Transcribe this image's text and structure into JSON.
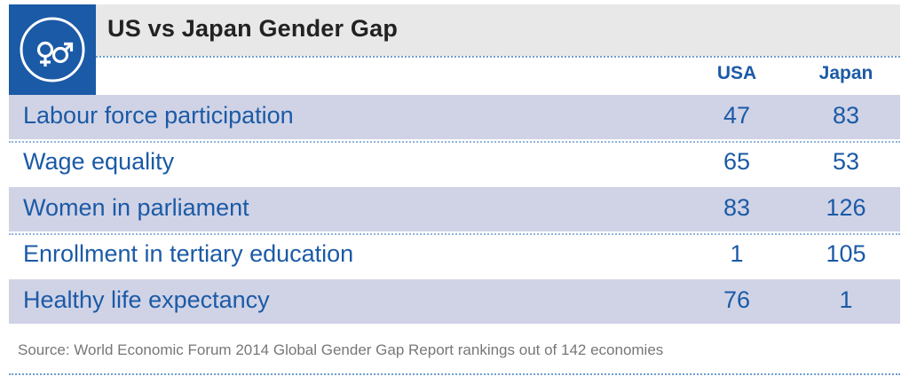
{
  "chart_data": {
    "type": "table",
    "title": "US vs Japan Gender Gap",
    "columns": [
      "USA",
      "Japan"
    ],
    "rows": [
      {
        "label": "Labour force participation",
        "values": [
          "47",
          "83"
        ]
      },
      {
        "label": "Wage equality",
        "values": [
          "65",
          "53"
        ]
      },
      {
        "label": "Women in parliament",
        "values": [
          "83",
          "126"
        ]
      },
      {
        "label": "Enrollment in tertiary education",
        "values": [
          "1",
          "105"
        ]
      },
      {
        "label": "Healthy life expectancy",
        "values": [
          "76",
          "1"
        ]
      }
    ],
    "source": "Source: World Economic Forum 2014 Global Gender Gap Report rankings out of 142 economies"
  },
  "icon": "gender-symbols-icon",
  "colors": {
    "accent": "#1b5aa6",
    "header_band": "#e8e8e8",
    "row_shade": "#d0d3e6",
    "source_text": "#777777"
  }
}
